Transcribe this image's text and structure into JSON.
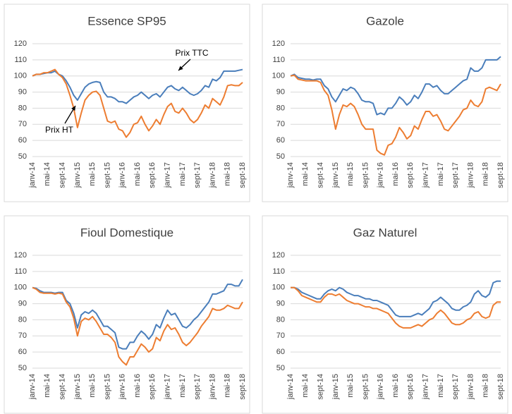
{
  "chart_data": [
    {
      "type": "line",
      "title": "Essence SP95",
      "grid": true,
      "ylim": [
        50,
        120
      ],
      "yticks": [
        50,
        60,
        70,
        80,
        90,
        100,
        110,
        120
      ],
      "categories": [
        "janv-14",
        null,
        null,
        null,
        "mai-14",
        null,
        null,
        null,
        "sept-14",
        null,
        null,
        null,
        "janv-15",
        null,
        null,
        null,
        "mai-15",
        null,
        null,
        null,
        "sept-15",
        null,
        null,
        null,
        "janv-16",
        null,
        null,
        null,
        "mai-16",
        null,
        null,
        null,
        "sept-16",
        null,
        null,
        null,
        "janv-17",
        null,
        null,
        null,
        "mai-17",
        null,
        null,
        null,
        "sept-17",
        null,
        null,
        null,
        "janv-18",
        null,
        null,
        null,
        "mai-18",
        null,
        null,
        null,
        "sept-18"
      ],
      "series": [
        {
          "name": "Prix TTC",
          "color": "#4a7ebb",
          "values": [
            100,
            101,
            101,
            101.5,
            102,
            102,
            103,
            101,
            100,
            97,
            93,
            88,
            85,
            89,
            93,
            95,
            96,
            96.5,
            96,
            90,
            87,
            87,
            86,
            84,
            84,
            83,
            85,
            87,
            88,
            90,
            88,
            86,
            88,
            89,
            87,
            90,
            93,
            94,
            92,
            91,
            93,
            91,
            89,
            88,
            89,
            91,
            94,
            93,
            98,
            97,
            99,
            103,
            103,
            103,
            103,
            103.5,
            104
          ]
        },
        {
          "name": "Prix HT",
          "color": "#ed7d31",
          "values": [
            100,
            101,
            101,
            102,
            102,
            103,
            104,
            101,
            99,
            95,
            88,
            80,
            68,
            77,
            85,
            88,
            90,
            90.5,
            88,
            80,
            72,
            71,
            72,
            67,
            66,
            62,
            65,
            70,
            71,
            75,
            70,
            66,
            69,
            73,
            70,
            76,
            81,
            83,
            78,
            77,
            80,
            77,
            73,
            71,
            73,
            77,
            82,
            80,
            86,
            84,
            82,
            87,
            94,
            94.5,
            94,
            94,
            96
          ]
        }
      ]
    },
    {
      "type": "line",
      "title": "Gazole",
      "grid": true,
      "ylim": [
        50,
        120
      ],
      "yticks": [
        50,
        60,
        70,
        80,
        90,
        100,
        110,
        120
      ],
      "categories": [
        "janv-14",
        null,
        null,
        null,
        "mai-14",
        null,
        null,
        null,
        "sept-14",
        null,
        null,
        null,
        "janv-15",
        null,
        null,
        null,
        "mai-15",
        null,
        null,
        null,
        "sept-15",
        null,
        null,
        null,
        "janv-16",
        null,
        null,
        null,
        "mai-16",
        null,
        null,
        null,
        "sept-16",
        null,
        null,
        null,
        "janv-17",
        null,
        null,
        null,
        "mai-17",
        null,
        null,
        null,
        "sept-17",
        null,
        null,
        null,
        "janv-18",
        null,
        null,
        null,
        "mai-18",
        null,
        null,
        null,
        "sept-18"
      ],
      "series": [
        {
          "color": "#4a7ebb",
          "values": [
            100,
            101,
            99,
            98.5,
            98,
            98,
            97.5,
            98,
            98,
            94,
            92,
            87,
            84,
            88,
            92,
            91,
            93,
            92,
            89,
            85,
            84,
            84,
            83,
            76,
            77,
            76,
            80,
            80,
            83,
            87,
            85,
            82,
            84,
            88,
            86,
            90,
            95,
            95,
            93,
            94,
            91,
            89,
            89,
            91,
            93,
            95,
            97,
            98,
            105,
            103,
            103,
            105,
            110,
            110,
            110,
            110,
            112
          ]
        },
        {
          "color": "#ed7d31",
          "values": [
            100,
            100.5,
            98,
            97.5,
            97,
            97,
            97,
            97,
            96,
            91,
            88,
            79,
            67,
            76,
            82,
            81,
            83,
            81,
            76,
            70,
            67,
            67,
            67,
            54,
            52,
            51,
            57,
            58,
            62,
            68,
            65,
            61,
            63,
            69,
            67,
            73,
            78,
            78,
            75,
            76,
            72,
            67,
            66,
            69,
            72,
            75,
            79,
            80,
            85,
            82,
            81,
            84,
            92,
            93,
            92,
            91,
            95
          ]
        }
      ]
    },
    {
      "type": "line",
      "title": "Fioul Domestique",
      "grid": true,
      "ylim": [
        50,
        120
      ],
      "yticks": [
        50,
        60,
        70,
        80,
        90,
        100,
        110,
        120
      ],
      "categories": [
        "janv-14",
        null,
        null,
        null,
        "mai-14",
        null,
        null,
        null,
        "sept-14",
        null,
        null,
        null,
        "janv-15",
        null,
        null,
        null,
        "mai-15",
        null,
        null,
        null,
        "sept-15",
        null,
        null,
        null,
        "janv-16",
        null,
        null,
        null,
        "mai-16",
        null,
        null,
        null,
        "sept-16",
        null,
        null,
        null,
        "janv-17",
        null,
        null,
        null,
        "mai-17",
        null,
        null,
        null,
        "sept-17",
        null,
        null,
        null,
        "janv-18",
        null,
        null,
        null,
        "mai-18",
        null,
        null,
        null,
        "sept-18"
      ],
      "series": [
        {
          "color": "#4a7ebb",
          "values": [
            100,
            99.5,
            98,
            97,
            97,
            97,
            96.5,
            97,
            97,
            92,
            90,
            84,
            75,
            83,
            85,
            84,
            86,
            84,
            80,
            76,
            76,
            74,
            72,
            63,
            62,
            62,
            66,
            66,
            70,
            73,
            71,
            68,
            71,
            77,
            75,
            81,
            86,
            83,
            84,
            80,
            76,
            75,
            77,
            80,
            82,
            85,
            88,
            91,
            96,
            96,
            97,
            98,
            102,
            102,
            101,
            101,
            105
          ]
        },
        {
          "color": "#ed7d31",
          "values": [
            100,
            99,
            97,
            96.5,
            96.5,
            96.5,
            96,
            96.5,
            96,
            91,
            88,
            81,
            70,
            79,
            81,
            80,
            82,
            79,
            75,
            71,
            71,
            69,
            66,
            57,
            54,
            52,
            57,
            57,
            61,
            65,
            63,
            60,
            62,
            69,
            67,
            73,
            77,
            74,
            75,
            71,
            66,
            64,
            66,
            69,
            72,
            76,
            79,
            82,
            87,
            86,
            86,
            87,
            89,
            88,
            87,
            87,
            91
          ]
        }
      ]
    },
    {
      "type": "line",
      "title": "Gaz Naturel",
      "grid": true,
      "ylim": [
        50,
        120
      ],
      "yticks": [
        50,
        60,
        70,
        80,
        90,
        100,
        110,
        120
      ],
      "categories": [
        "janv-14",
        null,
        null,
        null,
        "mai-14",
        null,
        null,
        null,
        "sept-14",
        null,
        null,
        null,
        "janv-15",
        null,
        null,
        null,
        "mai-15",
        null,
        null,
        null,
        "sept-15",
        null,
        null,
        null,
        "janv-16",
        null,
        null,
        null,
        "mai-16",
        null,
        null,
        null,
        "sept-16",
        null,
        null,
        null,
        "janv-17",
        null,
        null,
        null,
        "mai-17",
        null,
        null,
        null,
        "sept-17",
        null,
        null,
        null,
        "janv-18",
        null,
        null,
        null,
        "mai-18",
        null,
        null,
        null,
        "sept-18"
      ],
      "series": [
        {
          "color": "#4a7ebb",
          "values": [
            100,
            100,
            99,
            97,
            96,
            95,
            94,
            93,
            93,
            96,
            98,
            99,
            98,
            100,
            99,
            97,
            96,
            95,
            95,
            94,
            93,
            93,
            92,
            92,
            91,
            90,
            89,
            86,
            83,
            82,
            82,
            82,
            82,
            83,
            84,
            83,
            85,
            87,
            91,
            92,
            94,
            92,
            90,
            87,
            86,
            86,
            88,
            89,
            91,
            96,
            98,
            95,
            94,
            96,
            103,
            104,
            104
          ]
        },
        {
          "color": "#ed7d31",
          "values": [
            100,
            100,
            98,
            95,
            94,
            93,
            92,
            91,
            91,
            94,
            96,
            96,
            95,
            96,
            94,
            92,
            91,
            90,
            90,
            89,
            88,
            88,
            87,
            87,
            86,
            85,
            84,
            81,
            78,
            76,
            75,
            75,
            75,
            76,
            77,
            76,
            78,
            80,
            81,
            84,
            86,
            84,
            81,
            78,
            77,
            77,
            78,
            80,
            81,
            84,
            85,
            82,
            81,
            82,
            89,
            91,
            91
          ]
        }
      ]
    }
  ]
}
